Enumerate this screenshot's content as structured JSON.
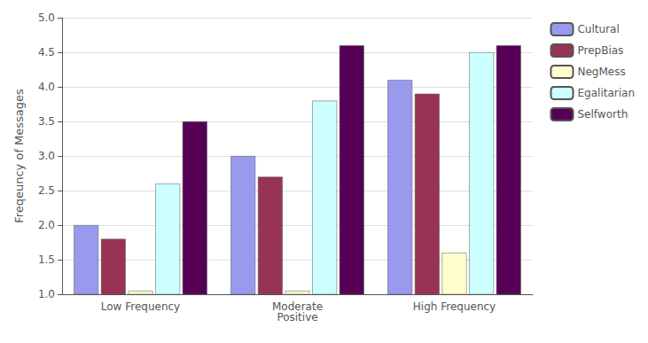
{
  "chart_data": {
    "type": "bar",
    "categories": [
      "Low Frequency",
      "Moderate\nPositive",
      "High Frequency"
    ],
    "series": [
      {
        "name": "Cultural",
        "color": "#9999EE",
        "values": [
          2.0,
          3.0,
          4.1
        ]
      },
      {
        "name": "PrepBias",
        "color": "#993355",
        "values": [
          1.8,
          2.7,
          3.9
        ]
      },
      {
        "name": "NegMess",
        "color": "#FFFFCC",
        "values": [
          1.05,
          1.05,
          1.6
        ]
      },
      {
        "name": "Egalitarian",
        "color": "#CCFFFF",
        "values": [
          2.6,
          3.8,
          4.5
        ]
      },
      {
        "name": "Selfworth",
        "color": "#550055",
        "values": [
          3.5,
          4.6,
          4.6
        ]
      }
    ],
    "ylabel": "Freqeuncy of Messages",
    "ylim": [
      1.0,
      5.0
    ],
    "yticks": [
      {
        "value": 1.0,
        "label": "1.0"
      },
      1.5,
      {
        "value": 2.0,
        "label": "2.0"
      },
      2.5,
      {
        "value": 3.0,
        "label": "3.0"
      },
      3.5,
      {
        "value": 4.0,
        "label": "4.0"
      },
      4.5,
      {
        "value": 5.0,
        "label": "5.0"
      }
    ],
    "grid": true,
    "legend": "right"
  }
}
